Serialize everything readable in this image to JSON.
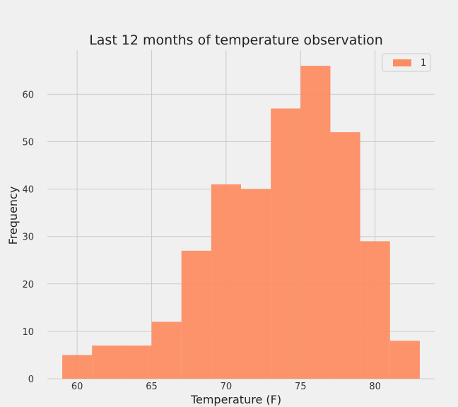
{
  "chart_data": {
    "type": "bar",
    "title": "Last 12 months of temperature observation",
    "xlabel": "Temperature (F)",
    "ylabel": "Frequency",
    "bin_edges": [
      59,
      61,
      63,
      65,
      67,
      69,
      71,
      73,
      75,
      77,
      79,
      81,
      83
    ],
    "values": [
      5,
      7,
      7,
      12,
      27,
      41,
      40,
      57,
      66,
      52,
      29,
      8
    ],
    "xlim": [
      58,
      84
    ],
    "ylim": [
      0,
      69.3
    ],
    "xticks": [
      60,
      65,
      70,
      75,
      80
    ],
    "yticks": [
      0,
      10,
      20,
      30,
      40,
      50,
      60
    ],
    "grid": true,
    "legend": {
      "position": "top-right",
      "entries": [
        "1"
      ]
    },
    "colors": {
      "bar": "#fc8d62",
      "background": "#f0f0f0",
      "grid": "#cbcbcb"
    }
  }
}
